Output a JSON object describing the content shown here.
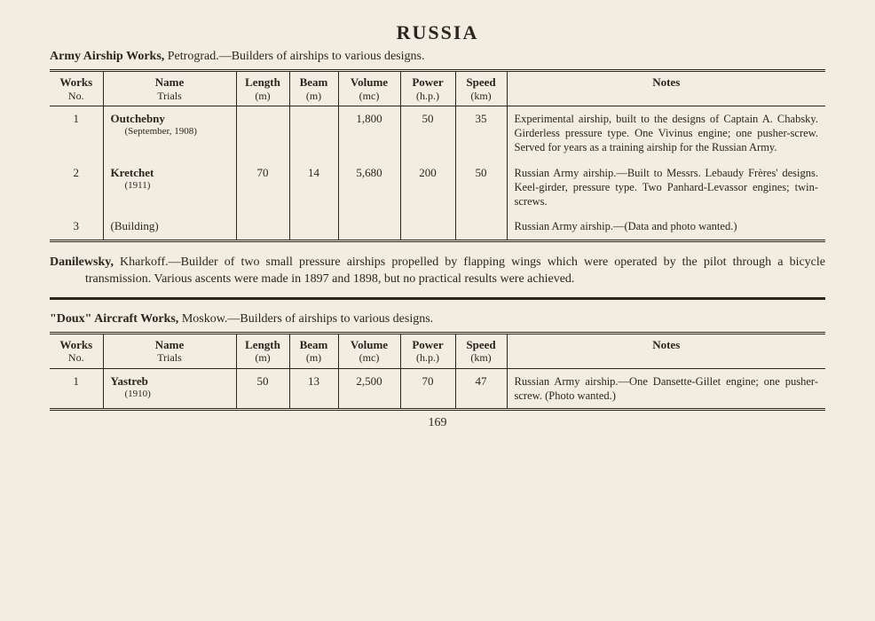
{
  "title": "RUSSIA",
  "section1": {
    "headingBold": "Army Airship Works,",
    "headingRest": " Petrograd.—Builders of airships to various designs."
  },
  "table": {
    "headers": [
      {
        "h1": "Works",
        "h2": "No."
      },
      {
        "h1": "Name",
        "h2": "Trials"
      },
      {
        "h1": "Length",
        "h2": "(m)"
      },
      {
        "h1": "Beam",
        "h2": "(m)"
      },
      {
        "h1": "Volume",
        "h2": "(mc)"
      },
      {
        "h1": "Power",
        "h2": "(h.p.)"
      },
      {
        "h1": "Speed",
        "h2": "(km)"
      },
      {
        "h1": "Notes",
        "h2": ""
      }
    ],
    "widths": [
      "60px",
      "150px",
      "60px",
      "55px",
      "70px",
      "62px",
      "58px",
      "auto"
    ]
  },
  "rows1": [
    {
      "no": "1",
      "name": "Outchebny",
      "trials": "(September, 1908)",
      "length": "",
      "beam": "",
      "volume": "1,800",
      "power": "50",
      "speed": "35",
      "notes": "Experimental airship, built to the designs of Captain A. Chabsky. Girderless pressure type. One Vivinus engine; one pusher-screw. Served for years as a training airship for the Russian Army."
    },
    {
      "no": "2",
      "name": "Kretchet",
      "trials": "(1911)",
      "length": "70",
      "beam": "14",
      "volume": "5,680",
      "power": "200",
      "speed": "50",
      "notes": "Russian Army airship.—Built to Messrs. Lebaudy Frères' designs. Keel-girder, pressure type. Two Panhard-Levassor engines; twin-screws."
    },
    {
      "no": "3",
      "name": "(Building)",
      "trials": "",
      "length": "",
      "beam": "",
      "volume": "",
      "power": "",
      "speed": "",
      "notes": "Russian Army airship.—(Data and photo wanted.)"
    }
  ],
  "para1Bold": "Danilewsky,",
  "para1Rest": " Kharkoff.—Builder of two small pressure airships propelled by flapping wings which were operated by the pilot through a bicycle transmission. Various ascents were made in 1897 and 1898, but no practical results were achieved.",
  "section2": {
    "headingBold": "\"Doux\" Aircraft Works,",
    "headingRest": " Moskow.—Builders of airships to various designs."
  },
  "rows2": [
    {
      "no": "1",
      "name": "Yastreb",
      "trials": "(1910)",
      "length": "50",
      "beam": "13",
      "volume": "2,500",
      "power": "70",
      "speed": "47",
      "notes": "Russian Army airship.—One Dansette-Gillet engine; one pusher-screw. (Photo wanted.)"
    }
  ],
  "pageNum": "169"
}
